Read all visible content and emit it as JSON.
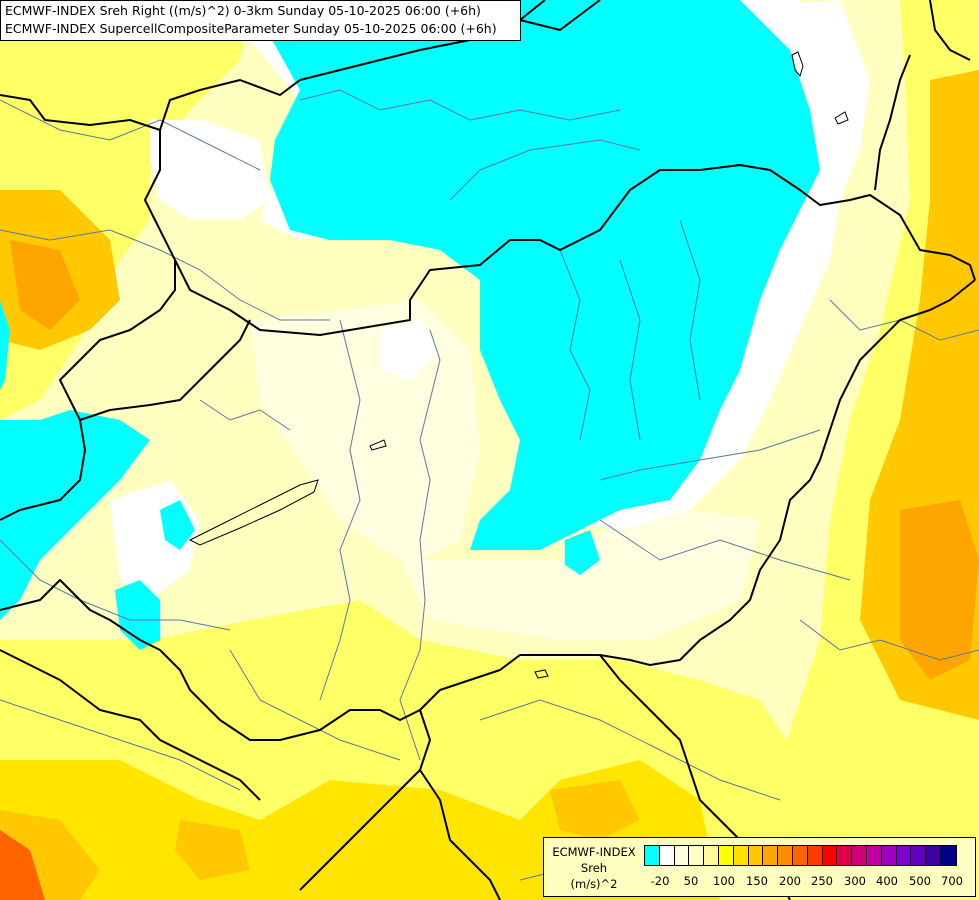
{
  "title": {
    "line1": "ECMWF-INDEX Sreh Right ((m/s)^2) 0-3km Sunday 05-10-2025 06:00 (+6h)",
    "line2": "ECMWF-INDEX SupercellCompositeParameter Sunday 05-10-2025 06:00 (+6h)"
  },
  "legend": {
    "line1": "ECMWF-INDEX",
    "line2": "Sreh",
    "line3": "(m/s)^2",
    "colors": [
      "#00ffff",
      "#ffffff",
      "#ffffe0",
      "#ffffc0",
      "#fffa9a",
      "#ffff00",
      "#ffe000",
      "#ffc800",
      "#ffa500",
      "#ff8c00",
      "#ff6400",
      "#ff3c00",
      "#ff0000",
      "#e0004a",
      "#d00078",
      "#c000a0",
      "#a000c0",
      "#8000d0",
      "#6000c0",
      "#4000a0",
      "#00008b"
    ],
    "ticks": [
      "-20",
      "50",
      "100",
      "150",
      "200",
      "250",
      "300",
      "400",
      "500",
      "700"
    ]
  },
  "map": {
    "fill_colors": {
      "base": "#ffffc0",
      "cyan": "#00ffff",
      "white": "#ffffff",
      "pale": "#ffffe0",
      "yellow1": "#ffff66",
      "yellow2": "#ffe500",
      "orange1": "#ffc800",
      "orange2": "#ffa500",
      "red": "#ff5500",
      "border": "#000000",
      "river": "#5a78a0"
    }
  }
}
